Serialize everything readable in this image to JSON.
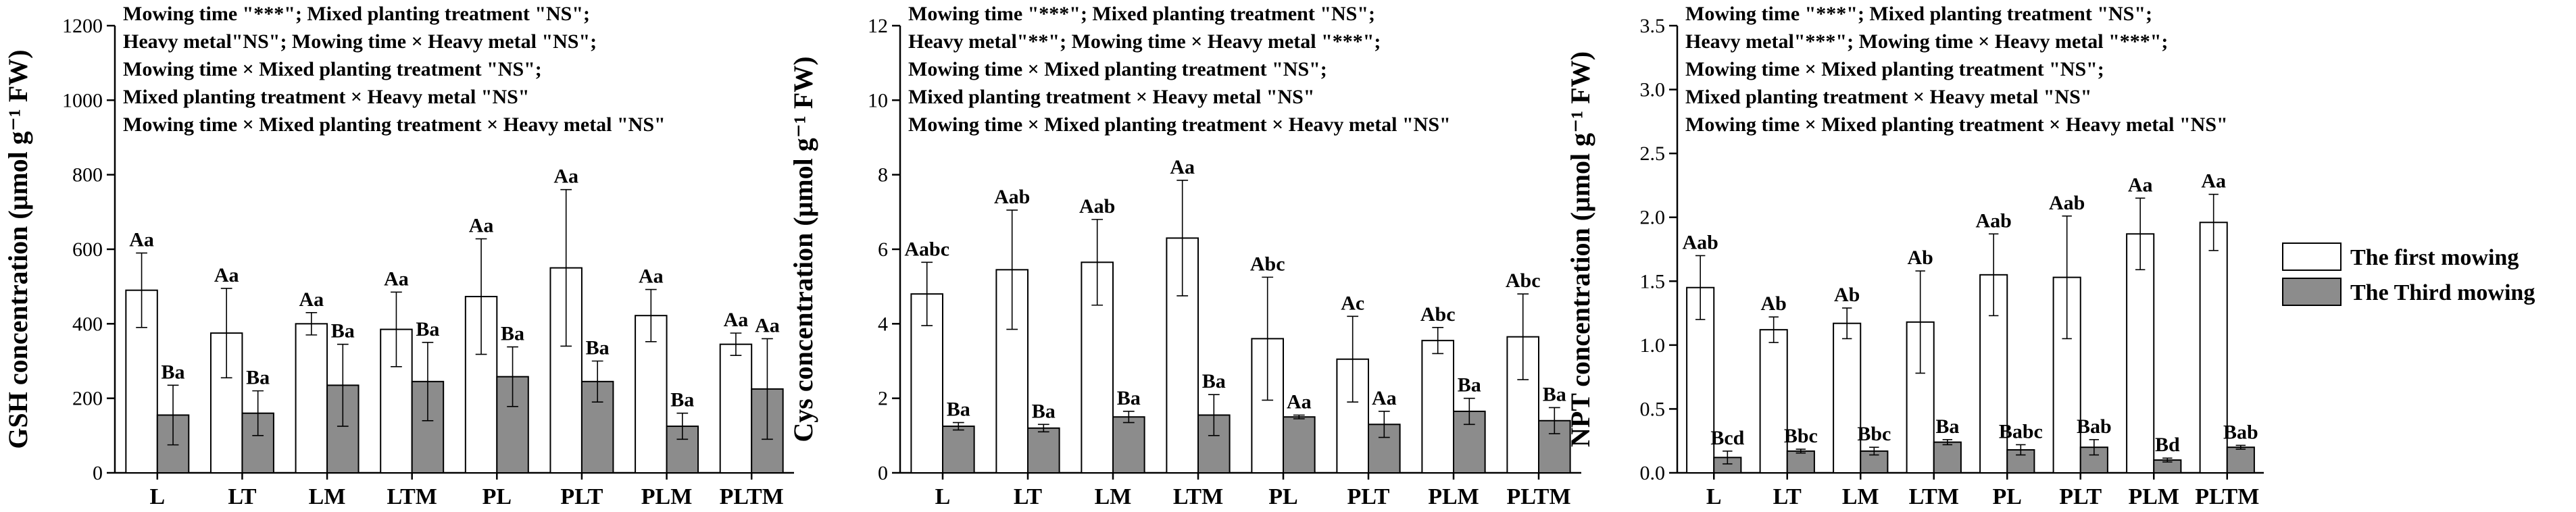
{
  "chart_data": [
    {
      "type": "bar",
      "ylabel": "GSH concentration (μmol g⁻¹ FW)",
      "ylim": [
        0,
        1200
      ],
      "yticks": [
        0,
        200,
        400,
        600,
        800,
        1000,
        1200
      ],
      "categories": [
        "L",
        "LT",
        "LM",
        "LTM",
        "PL",
        "PLT",
        "PLM",
        "PLTM"
      ],
      "series": [
        {
          "name": "The first mowing",
          "color": "#ffffff",
          "values": [
            490,
            375,
            400,
            385,
            473,
            550,
            422,
            345
          ],
          "errors": [
            100,
            120,
            30,
            100,
            155,
            210,
            70,
            30
          ],
          "labels": [
            "Aa",
            "Aa",
            "Aa",
            "Aa",
            "Aa",
            "Aa",
            "Aa",
            "Aa"
          ]
        },
        {
          "name": "The Third mowing",
          "color": "#8c8c8c",
          "values": [
            155,
            160,
            235,
            245,
            258,
            245,
            125,
            225
          ],
          "errors": [
            80,
            60,
            110,
            105,
            80,
            55,
            35,
            135
          ],
          "labels": [
            "Ba",
            "Ba",
            "Ba",
            "Ba",
            "Ba",
            "Ba",
            "Ba",
            "Aa"
          ]
        }
      ],
      "annotations": [
        "Mowing time \"***\"; Mixed planting treatment \"NS\";",
        "Heavy metal\"NS\"; Mowing time × Heavy metal \"NS\";",
        "Mowing time × Mixed planting treatment \"NS\";",
        "Mixed planting treatment × Heavy metal \"NS\"",
        "Mowing time × Mixed planting treatment × Heavy metal \"NS\""
      ]
    },
    {
      "type": "bar",
      "ylabel": "Cys concentration (μmol g⁻¹ FW)",
      "ylim": [
        0,
        12
      ],
      "yticks": [
        0,
        2,
        4,
        6,
        8,
        10,
        12
      ],
      "categories": [
        "L",
        "LT",
        "LM",
        "LTM",
        "PL",
        "PLT",
        "PLM",
        "PLTM"
      ],
      "series": [
        {
          "name": "The first mowing",
          "color": "#ffffff",
          "values": [
            4.8,
            5.45,
            5.65,
            6.3,
            3.6,
            3.05,
            3.55,
            3.65
          ],
          "errors": [
            0.85,
            1.6,
            1.15,
            1.55,
            1.65,
            1.15,
            0.35,
            1.15
          ],
          "labels": [
            "Aabc",
            "Aab",
            "Aab",
            "Aa",
            "Abc",
            "Ac",
            "Abc",
            "Abc"
          ]
        },
        {
          "name": "The Third mowing",
          "color": "#8c8c8c",
          "values": [
            1.25,
            1.2,
            1.5,
            1.55,
            1.5,
            1.3,
            1.65,
            1.4
          ],
          "errors": [
            0.1,
            0.1,
            0.15,
            0.55,
            0.05,
            0.35,
            0.35,
            0.35
          ],
          "labels": [
            "Ba",
            "Ba",
            "Ba",
            "Ba",
            "Aa",
            "Aa",
            "Ba",
            "Ba"
          ]
        }
      ],
      "annotations": [
        "Mowing time \"***\"; Mixed planting treatment \"NS\";",
        "Heavy metal\"**\"; Mowing time × Heavy metal \"***\";",
        "Mowing time × Mixed planting treatment \"NS\";",
        "Mixed planting treatment × Heavy metal \"NS\"",
        "Mowing time × Mixed planting treatment × Heavy metal \"NS\""
      ]
    },
    {
      "type": "bar",
      "ylabel": "NPT concentration (μmol g⁻¹ FW)",
      "ylim": [
        0,
        3.5
      ],
      "yticks": [
        0.0,
        0.5,
        1.0,
        1.5,
        2.0,
        2.5,
        3.0,
        3.5
      ],
      "categories": [
        "L",
        "LT",
        "LM",
        "LTM",
        "PL",
        "PLT",
        "PLM",
        "PLTM"
      ],
      "series": [
        {
          "name": "The first mowing",
          "color": "#ffffff",
          "values": [
            1.45,
            1.12,
            1.17,
            1.18,
            1.55,
            1.53,
            1.87,
            1.96
          ],
          "errors": [
            0.25,
            0.1,
            0.12,
            0.4,
            0.32,
            0.48,
            0.28,
            0.22
          ],
          "labels": [
            "Aab",
            "Ab",
            "Ab",
            "Ab",
            "Aab",
            "Aab",
            "Aa",
            "Aa"
          ]
        },
        {
          "name": "The Third mowing",
          "color": "#8c8c8c",
          "values": [
            0.12,
            0.17,
            0.17,
            0.24,
            0.18,
            0.2,
            0.1,
            0.2
          ],
          "errors": [
            0.05,
            0.015,
            0.03,
            0.02,
            0.04,
            0.06,
            0.015,
            0.015
          ],
          "labels": [
            "Bcd",
            "Bbc",
            "Bbc",
            "Ba",
            "Babc",
            "Bab",
            "Bd",
            "Bab"
          ]
        }
      ],
      "annotations": [
        "Mowing time \"***\"; Mixed planting treatment \"NS\";",
        "Heavy metal\"***\"; Mowing time × Heavy metal \"***\";",
        "Mowing time × Mixed planting treatment \"NS\";",
        "Mixed planting treatment × Heavy metal \"NS\"",
        "Mowing time × Mixed planting treatment × Heavy metal \"NS\""
      ]
    }
  ],
  "legend": {
    "position": "right",
    "items": [
      {
        "label": "The first mowing",
        "color": "#ffffff"
      },
      {
        "label": "The Third mowing",
        "color": "#8c8c8c"
      }
    ]
  }
}
